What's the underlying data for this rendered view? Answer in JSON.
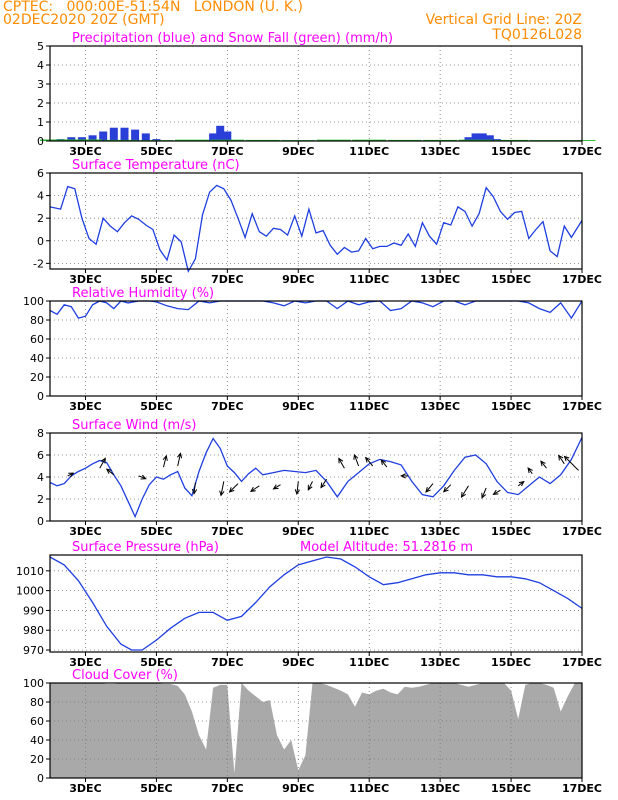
{
  "header": {
    "line1_left": "CPTEC:   000:00E-51:54N   LONDON (U. K.)",
    "line2_left": "02DEC2020 20Z (GMT)",
    "line2_right": "Vertical Grid Line: 20Z",
    "line3_right": "TQ0126L028",
    "color": "#ff8c00"
  },
  "colors": {
    "title": "#ff00ff",
    "line": "#1f3fe0",
    "rain": "#2a3fd8",
    "snow": "#22b82c",
    "cloud": "#a9a9a9",
    "frame": "#000000"
  },
  "x_labels": [
    "3DEC",
    "5DEC",
    "7DEC",
    "9DEC",
    "11DEC",
    "13DEC",
    "15DEC",
    "17DEC"
  ],
  "chart_data": [
    {
      "type": "bar",
      "title": "Precipitation (blue) and Snow Fall (green) (mm/h)",
      "ylim": [
        0,
        5
      ],
      "yticks": [
        0,
        1,
        2,
        3,
        4,
        5
      ],
      "series": [
        {
          "name": "Precipitation",
          "color": "blue",
          "x": [
            2.3,
            2.6,
            2.9,
            3.2,
            3.5,
            3.8,
            4.1,
            4.4,
            4.7,
            5.0,
            6.6,
            6.8,
            7.0,
            13.8,
            14.0,
            14.2,
            14.4,
            14.6
          ],
          "values": [
            0.1,
            0.2,
            0.2,
            0.3,
            0.5,
            0.7,
            0.7,
            0.6,
            0.4,
            0.1,
            0.4,
            0.8,
            0.5,
            0.2,
            0.4,
            0.4,
            0.3,
            0.1
          ]
        },
        {
          "name": "Snow Fall",
          "color": "green",
          "x": [
            2.2,
            3.0,
            4.0,
            5.0,
            6.0,
            7.0,
            8.0,
            9.0,
            10.0,
            11.0,
            12.0,
            13.0,
            14.0,
            15.0,
            16.0,
            16.9
          ],
          "values": [
            0.08,
            0.08,
            0.06,
            0.05,
            0.07,
            0.07,
            0.06,
            0.05,
            0.07,
            0.07,
            0.06,
            0.06,
            0.07,
            0.06,
            0.05,
            0.05
          ]
        }
      ]
    },
    {
      "type": "line",
      "title": "Surface Temperature (nC)",
      "ylim": [
        -2.5,
        6
      ],
      "yticks": [
        -2,
        0,
        2,
        4,
        6
      ],
      "x": [
        2.0,
        2.3,
        2.5,
        2.7,
        2.9,
        3.1,
        3.3,
        3.5,
        3.7,
        3.9,
        4.1,
        4.3,
        4.5,
        4.7,
        4.9,
        5.1,
        5.3,
        5.5,
        5.7,
        5.9,
        6.1,
        6.3,
        6.5,
        6.7,
        6.9,
        7.1,
        7.3,
        7.5,
        7.7,
        7.9,
        8.1,
        8.3,
        8.5,
        8.7,
        8.9,
        9.1,
        9.3,
        9.5,
        9.7,
        9.9,
        10.1,
        10.3,
        10.5,
        10.7,
        10.9,
        11.1,
        11.3,
        11.5,
        11.7,
        11.9,
        12.1,
        12.3,
        12.5,
        12.7,
        12.9,
        13.1,
        13.3,
        13.5,
        13.7,
        13.9,
        14.1,
        14.3,
        14.5,
        14.7,
        14.9,
        15.1,
        15.3,
        15.5,
        15.7,
        15.9,
        16.1,
        16.3,
        16.5,
        16.7,
        17.0
      ],
      "values": [
        3.0,
        2.8,
        4.8,
        4.6,
        2.0,
        0.2,
        -0.3,
        2.0,
        1.3,
        0.8,
        1.6,
        2.2,
        1.9,
        1.4,
        1.0,
        -0.8,
        -1.7,
        0.5,
        -0.1,
        -2.7,
        -1.6,
        2.3,
        4.3,
        4.9,
        4.6,
        3.6,
        2.0,
        0.3,
        2.4,
        0.8,
        0.4,
        1.1,
        1.0,
        0.5,
        2.2,
        0.4,
        2.8,
        0.7,
        0.9,
        -0.4,
        -1.2,
        -0.6,
        -1.0,
        -0.9,
        0.2,
        -0.7,
        -0.5,
        -0.5,
        -0.2,
        -0.4,
        0.6,
        -0.5,
        1.6,
        0.4,
        -0.3,
        1.6,
        1.4,
        3.0,
        2.6,
        1.3,
        2.4,
        4.7,
        3.9,
        2.6,
        1.9,
        2.5,
        2.6,
        0.2,
        1.0,
        1.7,
        -0.9,
        -1.4,
        1.3,
        0.3,
        1.8
      ]
    },
    {
      "type": "line",
      "title": "Relative Humidity (%)",
      "ylim": [
        0,
        100
      ],
      "yticks": [
        0,
        20,
        40,
        60,
        80,
        100
      ],
      "x": [
        2.0,
        2.2,
        2.4,
        2.6,
        2.8,
        3.0,
        3.2,
        3.4,
        3.6,
        3.8,
        4.0,
        4.2,
        4.5,
        4.8,
        5.0,
        5.3,
        5.6,
        5.9,
        6.2,
        6.5,
        6.8,
        7.1,
        7.4,
        7.7,
        8.0,
        8.3,
        8.6,
        8.9,
        9.2,
        9.5,
        9.8,
        10.1,
        10.4,
        10.7,
        11.0,
        11.3,
        11.6,
        11.9,
        12.2,
        12.5,
        12.8,
        13.1,
        13.4,
        13.7,
        14.0,
        14.3,
        14.6,
        14.9,
        15.2,
        15.5,
        15.8,
        16.1,
        16.4,
        16.7,
        17.0
      ],
      "values": [
        90,
        86,
        96,
        94,
        82,
        84,
        96,
        100,
        98,
        92,
        100,
        98,
        100,
        100,
        99,
        95,
        92,
        91,
        100,
        98,
        100,
        100,
        100,
        100,
        100,
        98,
        95,
        100,
        98,
        100,
        100,
        92,
        100,
        96,
        99,
        100,
        90,
        92,
        100,
        98,
        94,
        100,
        100,
        96,
        100,
        100,
        100,
        100,
        100,
        98,
        92,
        88,
        98,
        82,
        100
      ]
    },
    {
      "type": "line",
      "title": "Surface Wind (m/s)",
      "ylim": [
        0,
        8
      ],
      "yticks": [
        0,
        2,
        4,
        6,
        8
      ],
      "x": [
        2.0,
        2.2,
        2.4,
        2.6,
        2.8,
        3.0,
        3.2,
        3.4,
        3.6,
        3.8,
        4.0,
        4.2,
        4.4,
        4.6,
        4.8,
        5.0,
        5.2,
        5.4,
        5.6,
        5.8,
        6.0,
        6.2,
        6.4,
        6.6,
        6.8,
        7.0,
        7.2,
        7.4,
        7.6,
        7.8,
        8.0,
        8.3,
        8.6,
        8.9,
        9.2,
        9.5,
        9.8,
        10.1,
        10.4,
        10.7,
        11.0,
        11.3,
        11.6,
        11.9,
        12.2,
        12.5,
        12.8,
        13.1,
        13.4,
        13.7,
        14.0,
        14.3,
        14.6,
        14.9,
        15.2,
        15.5,
        15.8,
        16.1,
        16.4,
        16.7,
        17.0
      ],
      "values": [
        3.5,
        3.2,
        3.4,
        4.1,
        4.5,
        4.8,
        5.2,
        5.5,
        5.3,
        4.2,
        3.2,
        1.8,
        0.4,
        2.0,
        3.3,
        4.0,
        3.8,
        4.2,
        4.5,
        3.0,
        2.3,
        4.5,
        6.2,
        7.5,
        6.6,
        5.0,
        4.4,
        3.6,
        4.3,
        4.8,
        4.2,
        4.4,
        4.6,
        4.5,
        4.4,
        4.6,
        3.6,
        2.2,
        3.6,
        4.4,
        5.2,
        5.6,
        5.4,
        5.1,
        3.6,
        2.4,
        2.2,
        3.2,
        4.6,
        5.8,
        6.0,
        5.2,
        3.6,
        2.6,
        2.4,
        3.2,
        4.0,
        3.4,
        4.2,
        5.6,
        7.6
      ],
      "arrows": [
        {
          "x": 2.5,
          "y": 4.1,
          "u": 0.4,
          "v": 0.2
        },
        {
          "x": 3.4,
          "y": 4.8,
          "u": 0.4,
          "v": 0.7
        },
        {
          "x": 3.8,
          "y": 4.2,
          "u": -0.5,
          "v": 0.4
        },
        {
          "x": 4.5,
          "y": 4.1,
          "u": 0.5,
          "v": -0.2
        },
        {
          "x": 5.2,
          "y": 4.9,
          "u": 0.2,
          "v": 0.8
        },
        {
          "x": 5.6,
          "y": 5.0,
          "u": 0.2,
          "v": 0.9
        },
        {
          "x": 6.1,
          "y": 3.5,
          "u": -0.1,
          "v": -0.8
        },
        {
          "x": 6.9,
          "y": 3.6,
          "u": -0.2,
          "v": -1.0
        },
        {
          "x": 7.3,
          "y": 3.4,
          "u": -0.6,
          "v": -0.6
        },
        {
          "x": 7.9,
          "y": 3.2,
          "u": -0.6,
          "v": -0.4
        },
        {
          "x": 8.5,
          "y": 3.3,
          "u": -0.5,
          "v": -0.3
        },
        {
          "x": 9.0,
          "y": 3.6,
          "u": -0.1,
          "v": -0.9
        },
        {
          "x": 9.4,
          "y": 3.6,
          "u": -0.3,
          "v": -0.6
        },
        {
          "x": 9.8,
          "y": 3.8,
          "u": -0.4,
          "v": -0.6
        },
        {
          "x": 10.3,
          "y": 4.8,
          "u": -0.4,
          "v": 0.7
        },
        {
          "x": 10.7,
          "y": 5.0,
          "u": -0.3,
          "v": 0.8
        },
        {
          "x": 11.1,
          "y": 5.0,
          "u": -0.5,
          "v": 0.6
        },
        {
          "x": 11.5,
          "y": 4.9,
          "u": -0.4,
          "v": 0.5
        },
        {
          "x": 12.1,
          "y": 4.1,
          "u": -0.5,
          "v": 0.0
        },
        {
          "x": 12.8,
          "y": 3.4,
          "u": -0.5,
          "v": -0.6
        },
        {
          "x": 13.3,
          "y": 3.3,
          "u": -0.5,
          "v": -0.5
        },
        {
          "x": 13.8,
          "y": 3.2,
          "u": -0.5,
          "v": -0.8
        },
        {
          "x": 14.3,
          "y": 3.0,
          "u": -0.3,
          "v": -0.7
        },
        {
          "x": 14.7,
          "y": 2.8,
          "u": -0.5,
          "v": -0.3
        },
        {
          "x": 15.2,
          "y": 3.2,
          "u": 0.4,
          "v": 0.3
        },
        {
          "x": 15.6,
          "y": 4.3,
          "u": -0.3,
          "v": 0.4
        },
        {
          "x": 16.0,
          "y": 4.8,
          "u": -0.4,
          "v": 0.5
        },
        {
          "x": 16.5,
          "y": 5.2,
          "u": -0.4,
          "v": 0.6
        },
        {
          "x": 16.9,
          "y": 4.6,
          "u": -1.0,
          "v": 1.0
        }
      ]
    },
    {
      "type": "line",
      "title": "Surface Pressure (hPa)",
      "annotation": "Model Altitude: 51.2816 m",
      "ylim": [
        969,
        1018
      ],
      "yticks": [
        970,
        980,
        990,
        1000,
        1010
      ],
      "x": [
        2.0,
        2.4,
        2.8,
        3.2,
        3.6,
        4.0,
        4.3,
        4.6,
        5.0,
        5.4,
        5.8,
        6.2,
        6.6,
        7.0,
        7.4,
        7.8,
        8.2,
        8.6,
        9.0,
        9.4,
        9.8,
        10.2,
        10.6,
        11.0,
        11.4,
        11.8,
        12.2,
        12.6,
        13.0,
        13.4,
        13.8,
        14.2,
        14.6,
        15.0,
        15.4,
        15.8,
        16.2,
        16.6,
        17.0
      ],
      "values": [
        1017,
        1013,
        1005,
        994,
        982,
        973,
        970,
        970,
        975,
        981,
        986,
        989,
        989,
        985,
        987,
        994,
        1002,
        1008,
        1013,
        1015,
        1017,
        1016,
        1012,
        1007,
        1003,
        1004,
        1006,
        1008,
        1009,
        1009,
        1008,
        1008,
        1007,
        1007,
        1006,
        1004,
        1000,
        996,
        991
      ]
    },
    {
      "type": "area",
      "title": "Cloud Cover (%)",
      "ylim": [
        0,
        100
      ],
      "yticks": [
        0,
        20,
        40,
        60,
        80,
        100
      ],
      "x": [
        2.0,
        2.4,
        2.8,
        3.0,
        3.2,
        3.4,
        3.6,
        3.8,
        4.0,
        4.2,
        4.4,
        4.6,
        4.8,
        5.0,
        5.2,
        5.4,
        5.6,
        5.8,
        6.0,
        6.2,
        6.4,
        6.6,
        6.8,
        7.0,
        7.2,
        7.4,
        7.6,
        7.8,
        8.0,
        8.2,
        8.4,
        8.6,
        8.8,
        9.0,
        9.2,
        9.4,
        9.6,
        9.8,
        10.0,
        10.2,
        10.4,
        10.6,
        10.8,
        11.0,
        11.2,
        11.4,
        11.6,
        11.8,
        12.0,
        12.2,
        12.4,
        12.6,
        12.8,
        13.0,
        13.2,
        13.4,
        13.6,
        13.8,
        14.0,
        14.2,
        14.4,
        14.6,
        14.8,
        15.0,
        15.2,
        15.4,
        15.6,
        15.8,
        16.0,
        16.2,
        16.4,
        16.6,
        16.8,
        17.0
      ],
      "values": [
        100,
        100,
        100,
        100,
        100,
        100,
        99,
        99,
        100,
        100,
        100,
        100,
        100,
        100,
        99,
        99,
        97,
        88,
        70,
        45,
        30,
        95,
        98,
        98,
        5,
        100,
        92,
        86,
        80,
        82,
        45,
        30,
        40,
        8,
        24,
        100,
        100,
        98,
        95,
        92,
        88,
        75,
        90,
        88,
        92,
        94,
        90,
        88,
        96,
        95,
        96,
        98,
        100,
        100,
        100,
        100,
        98,
        96,
        98,
        100,
        100,
        100,
        100,
        92,
        62,
        98,
        100,
        100,
        98,
        95,
        70,
        86,
        100,
        100
      ]
    }
  ]
}
